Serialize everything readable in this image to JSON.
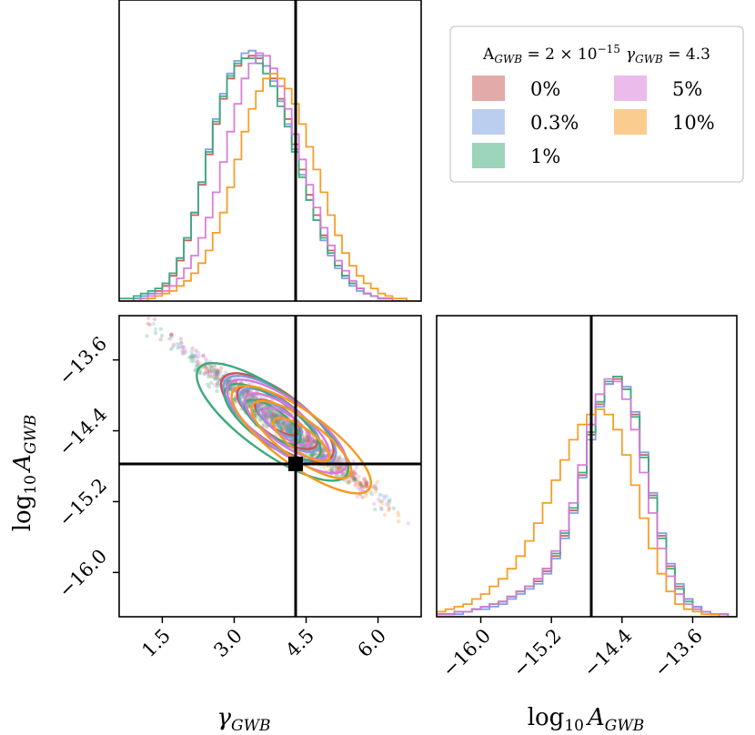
{
  "chart_data": {
    "type": "corner",
    "legend": {
      "title": "A_GWB = 2×10^−15  γ_GWB = 4.3",
      "title_parts": {
        "a": "A",
        "a_sub": "GWB",
        "eq1": " = 2 × 10",
        "exp": "−15",
        "g": "γ",
        "g_sub": "GWB",
        "eq2": " = 4.3"
      },
      "placement": "top-right",
      "entries": [
        {
          "label": "0%",
          "color": "#c85555"
        },
        {
          "label": "0.3%",
          "color": "#7a9de0"
        },
        {
          "label": "1%",
          "color": "#3caa7a"
        },
        {
          "label": "5%",
          "color": "#d878d8"
        },
        {
          "label": "10%",
          "color": "#f59a1e"
        }
      ]
    },
    "truth": {
      "gamma": 4.3,
      "log10A": -14.7
    },
    "axes": {
      "gamma": {
        "label": "γ_GWB",
        "label_main": "γ",
        "label_sub": "GWB",
        "range": [
          0.6,
          6.9
        ],
        "ticks": [
          1.5,
          3.0,
          4.5,
          6.0
        ],
        "tick_labels": [
          "1.5",
          "3.0",
          "4.5",
          "6.0"
        ]
      },
      "log10A": {
        "label": "log10 A_GWB",
        "label_main": "log",
        "label_base": "10",
        "label_var": "A",
        "label_sub": "GWB",
        "range": [
          -16.5,
          -13.1
        ],
        "ticks": [
          -16.0,
          -15.2,
          -14.4,
          -13.6
        ],
        "tick_labels": [
          "−16.0",
          "−15.2",
          "−14.4",
          "−13.6"
        ]
      }
    },
    "series": [
      {
        "name": "0%",
        "color": "#c85555",
        "gamma_hist": {
          "x0": 0.6,
          "bin": 0.15,
          "counts": [
            0,
            0,
            1,
            2,
            3,
            4,
            6,
            10,
            16,
            24,
            34,
            46,
            58,
            70,
            80,
            88,
            93,
            96,
            97,
            96,
            93,
            88,
            80,
            72,
            62,
            52,
            42,
            34,
            26,
            20,
            14,
            10,
            7,
            5,
            3,
            2,
            1,
            1,
            0,
            0,
            0,
            0
          ]
        },
        "logA_hist": {
          "x0": -16.5,
          "bin": 0.1,
          "counts": [
            1,
            1,
            2,
            2,
            3,
            4,
            5,
            6,
            8,
            10,
            12,
            14,
            18,
            24,
            32,
            42,
            56,
            72,
            84,
            92,
            94,
            90,
            80,
            64,
            48,
            32,
            20,
            12,
            7,
            4,
            2,
            1,
            1,
            0
          ]
        }
      },
      {
        "name": "0.3%",
        "color": "#7a9de0",
        "gamma_hist": {
          "x0": 0.6,
          "bin": 0.15,
          "counts": [
            0,
            0,
            1,
            2,
            3,
            5,
            7,
            11,
            17,
            25,
            35,
            47,
            60,
            72,
            82,
            90,
            95,
            98,
            99,
            97,
            93,
            87,
            79,
            70,
            60,
            50,
            40,
            32,
            24,
            18,
            13,
            9,
            6,
            4,
            3,
            2,
            1,
            1,
            0,
            0,
            0,
            0
          ]
        },
        "logA_hist": {
          "x0": -16.5,
          "bin": 0.1,
          "counts": [
            1,
            1,
            1,
            2,
            3,
            3,
            4,
            5,
            7,
            9,
            11,
            13,
            17,
            23,
            31,
            41,
            55,
            70,
            83,
            92,
            95,
            91,
            81,
            65,
            49,
            33,
            21,
            13,
            7,
            4,
            2,
            1,
            1,
            0
          ]
        }
      },
      {
        "name": "1%",
        "color": "#3caa7a",
        "gamma_hist": {
          "x0": 0.6,
          "bin": 0.15,
          "counts": [
            1,
            1,
            2,
            3,
            4,
            5,
            7,
            11,
            17,
            25,
            35,
            47,
            59,
            71,
            81,
            89,
            94,
            96,
            96,
            94,
            90,
            85,
            77,
            69,
            59,
            49,
            40,
            32,
            25,
            19,
            14,
            10,
            7,
            5,
            3,
            2,
            1,
            1,
            0,
            0,
            0,
            0
          ]
        },
        "logA_hist": {
          "x0": -16.5,
          "bin": 0.1,
          "counts": [
            1,
            1,
            2,
            2,
            3,
            4,
            5,
            6,
            8,
            10,
            12,
            15,
            19,
            25,
            33,
            43,
            57,
            73,
            85,
            93,
            95,
            90,
            79,
            63,
            47,
            31,
            19,
            11,
            6,
            3,
            2,
            1,
            1,
            0
          ]
        }
      },
      {
        "name": "5%",
        "color": "#d878d8",
        "gamma_hist": {
          "x0": 0.6,
          "bin": 0.15,
          "counts": [
            0,
            0,
            0,
            1,
            2,
            3,
            4,
            6,
            9,
            13,
            18,
            25,
            33,
            43,
            55,
            67,
            78,
            88,
            94,
            98,
            97,
            92,
            85,
            76,
            66,
            56,
            46,
            37,
            29,
            22,
            16,
            12,
            8,
            5,
            3,
            2,
            1,
            1,
            0,
            0,
            0,
            0
          ]
        },
        "logA_hist": {
          "x0": -16.5,
          "bin": 0.1,
          "counts": [
            1,
            1,
            2,
            2,
            3,
            4,
            5,
            6,
            8,
            10,
            12,
            15,
            19,
            26,
            34,
            45,
            60,
            76,
            88,
            94,
            93,
            86,
            74,
            57,
            41,
            27,
            16,
            9,
            5,
            3,
            2,
            1,
            1,
            0
          ]
        }
      },
      {
        "name": "10%",
        "color": "#f59a1e",
        "gamma_hist": {
          "x0": 0.6,
          "bin": 0.15,
          "counts": [
            0,
            0,
            0,
            0,
            1,
            2,
            3,
            4,
            6,
            8,
            11,
            15,
            20,
            27,
            35,
            45,
            56,
            67,
            76,
            83,
            88,
            90,
            88,
            84,
            78,
            70,
            61,
            52,
            43,
            34,
            26,
            19,
            14,
            10,
            7,
            5,
            3,
            2,
            1,
            1,
            0,
            0
          ]
        },
        "logA_hist": {
          "x0": -16.5,
          "bin": 0.1,
          "counts": [
            2,
            3,
            4,
            5,
            7,
            9,
            12,
            15,
            19,
            24,
            30,
            37,
            45,
            54,
            62,
            70,
            76,
            80,
            82,
            80,
            74,
            64,
            52,
            39,
            27,
            17,
            10,
            5,
            3,
            2,
            1,
            1,
            0,
            0
          ]
        }
      }
    ],
    "contours": [
      {
        "name": "0%",
        "color": "#c85555",
        "center": [
          3.9,
          -14.25
        ],
        "rx": [
          0.55,
          1.0,
          1.4
        ],
        "ry": [
          0.12,
          0.2,
          0.28
        ],
        "angle_deg": 36
      },
      {
        "name": "0.3%",
        "color": "#7a9de0",
        "center": [
          3.95,
          -14.28
        ],
        "rx": [
          0.55,
          1.0,
          1.4
        ],
        "ry": [
          0.12,
          0.2,
          0.28
        ],
        "angle_deg": 36
      },
      {
        "name": "1%",
        "color": "#3caa7a",
        "center": [
          3.8,
          -14.3
        ],
        "rx": [
          0.7,
          1.2,
          1.9
        ],
        "ry": [
          0.14,
          0.24,
          0.34
        ],
        "angle_deg": 36
      },
      {
        "name": "5%",
        "color": "#d878d8",
        "center": [
          4.1,
          -14.35
        ],
        "rx": [
          0.6,
          1.05,
          1.5
        ],
        "ry": [
          0.12,
          0.2,
          0.28
        ],
        "angle_deg": 36
      },
      {
        "name": "10%",
        "color": "#f59a1e",
        "center": [
          4.4,
          -14.5
        ],
        "rx": [
          0.7,
          1.25,
          1.75
        ],
        "ry": [
          0.13,
          0.22,
          0.3
        ],
        "angle_deg": 36
      }
    ]
  }
}
